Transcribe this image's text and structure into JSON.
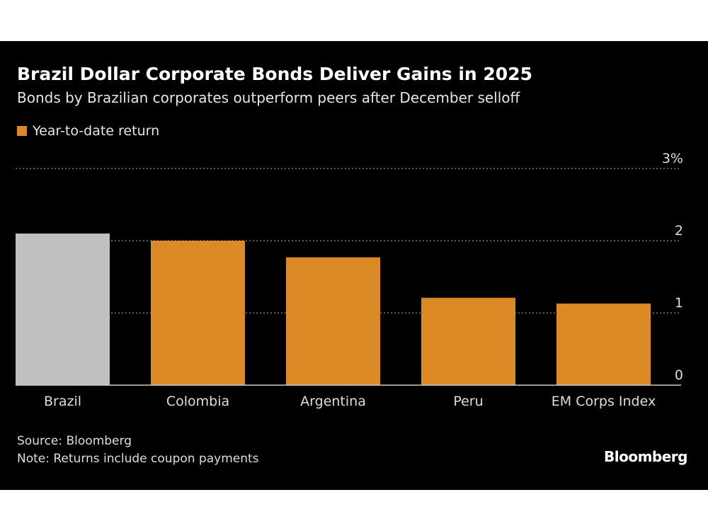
{
  "chart_data": {
    "type": "bar",
    "title": "Brazil Dollar Corporate Bonds Deliver Gains in 2025",
    "subtitle": "Bonds by Brazilian corporates outperform peers after December selloff",
    "legend": [
      {
        "name": "Year-to-date return",
        "color": "#dc8a26"
      }
    ],
    "legend_placement": "top-left",
    "categories": [
      "Brazil",
      "Colombia",
      "Argentina",
      "Peru",
      "EM Corps Index"
    ],
    "series": [
      {
        "name": "Year-to-date return",
        "values": [
          2.1,
          2.0,
          1.77,
          1.21,
          1.13
        ]
      }
    ],
    "bar_colors": [
      "#c0c0c0",
      "#dc8a26",
      "#dc8a26",
      "#dc8a26",
      "#dc8a26"
    ],
    "ylim": [
      0,
      3
    ],
    "yticks": [
      0,
      1,
      2,
      3
    ],
    "ytick_labels": [
      "0",
      "1",
      "2",
      "3%"
    ],
    "yaxis_side": "right",
    "grid": true,
    "xlabel": "",
    "ylabel": ""
  },
  "footer": {
    "source": "Source: Bloomberg",
    "note": "Note: Returns include coupon payments",
    "logo": "Bloomberg"
  }
}
